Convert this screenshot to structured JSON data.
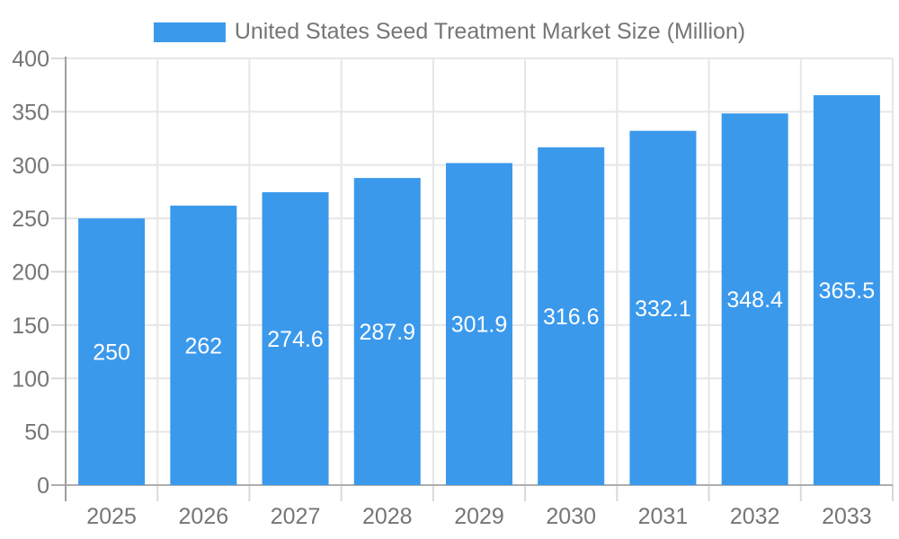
{
  "chart_data": {
    "type": "bar",
    "title": "United States Seed Treatment Market Size (Million)",
    "categories": [
      "2025",
      "2026",
      "2027",
      "2028",
      "2029",
      "2030",
      "2031",
      "2032",
      "2033"
    ],
    "series": [
      {
        "name": "United States Seed Treatment Market Size (Million)",
        "values": [
          250,
          262,
          274.6,
          287.9,
          301.9,
          316.6,
          332.1,
          348.4,
          365.5
        ]
      }
    ],
    "value_labels": [
      "250",
      "262",
      "274.6",
      "287.9",
      "301.9",
      "316.6",
      "332.1",
      "348.4",
      "365.5"
    ],
    "xlabel": "",
    "ylabel": "",
    "ylim": [
      0,
      400
    ],
    "ytick_step": 50,
    "yticks": [
      0,
      50,
      100,
      150,
      200,
      250,
      300,
      350,
      400
    ],
    "grid": true,
    "legend_position": "top",
    "colors": {
      "bar": "#3B99EC",
      "bar_value_label": "#FFFFFF",
      "axis_text": "#757575",
      "gridline": "#E6E6E6",
      "tick": "#D9D9D9",
      "y_axis_line": "#9E9E9E",
      "x_axis_line": "#ADADAD",
      "background": "#FFFFFF"
    }
  }
}
